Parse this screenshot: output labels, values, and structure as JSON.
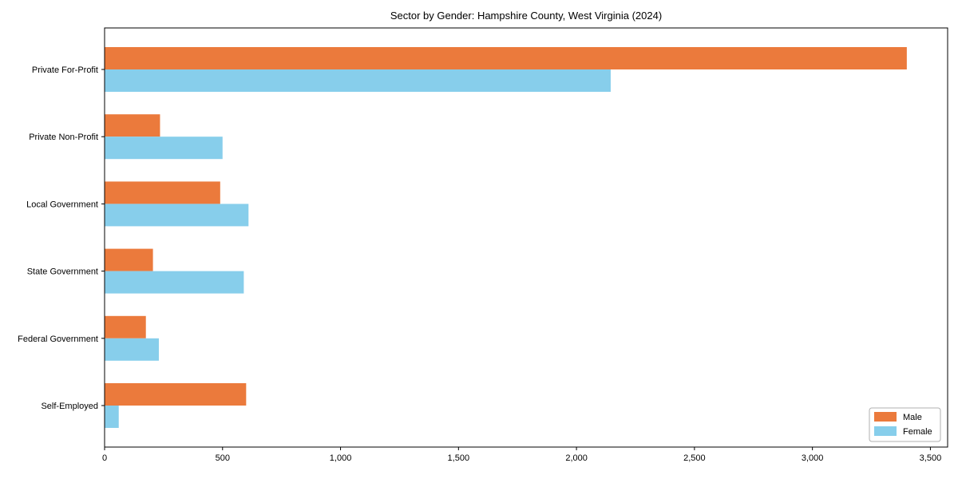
{
  "chart_data": {
    "type": "bar",
    "orientation": "horizontal",
    "title": "Sector by Gender: Hampshire County, West Virginia (2024)",
    "categories": [
      "Private For-Profit",
      "Private Non-Profit",
      "Local Government",
      "State Government",
      "Federal Government",
      "Self-Employed"
    ],
    "series": [
      {
        "name": "Male",
        "color": "#EB7A3C",
        "values": [
          3400,
          235,
          490,
          205,
          175,
          600
        ]
      },
      {
        "name": "Female",
        "color": "#87CEEB",
        "values": [
          2145,
          500,
          610,
          590,
          230,
          60
        ]
      }
    ],
    "xlim": [
      0,
      3573
    ],
    "xticks": [
      0,
      500,
      1000,
      1500,
      2000,
      2500,
      3000,
      3500
    ],
    "xtick_labels": [
      "0",
      "500",
      "1,000",
      "1,500",
      "2,000",
      "2,500",
      "3,000",
      "3,500"
    ],
    "xlabel": "",
    "ylabel": "",
    "grid": false,
    "legend_position": "lower right",
    "frame_color": "#000000",
    "tick_label_color": "#000000"
  }
}
